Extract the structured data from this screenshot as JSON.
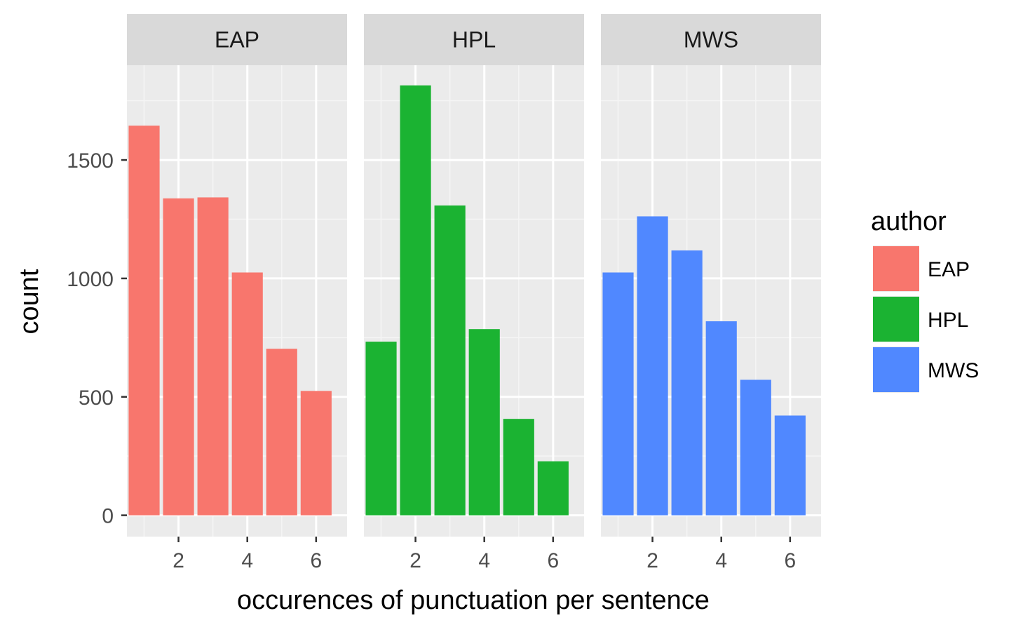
{
  "chart_data": {
    "type": "bar",
    "facet_by": "author",
    "x": [
      1,
      2,
      3,
      4,
      5,
      6
    ],
    "xticks": [
      2,
      4,
      6
    ],
    "xlabel": "occurences of punctuation per sentence",
    "ylabel": "count",
    "yticks": [
      0,
      500,
      1000,
      1500
    ],
    "ylim": [
      -90,
      1900
    ],
    "xlim": [
      0.5,
      6.9
    ],
    "grid": true,
    "legend": {
      "title": "author",
      "placement": "right"
    },
    "series": [
      {
        "name": "EAP",
        "color": "#F8766D",
        "values": [
          1645,
          1338,
          1342,
          1025,
          703,
          525
        ]
      },
      {
        "name": "HPL",
        "color": "#1BB332",
        "values": [
          733,
          1815,
          1308,
          786,
          407,
          228
        ]
      },
      {
        "name": "MWS",
        "color": "#5088FF",
        "values": [
          1025,
          1262,
          1118,
          819,
          572,
          421
        ]
      }
    ]
  }
}
